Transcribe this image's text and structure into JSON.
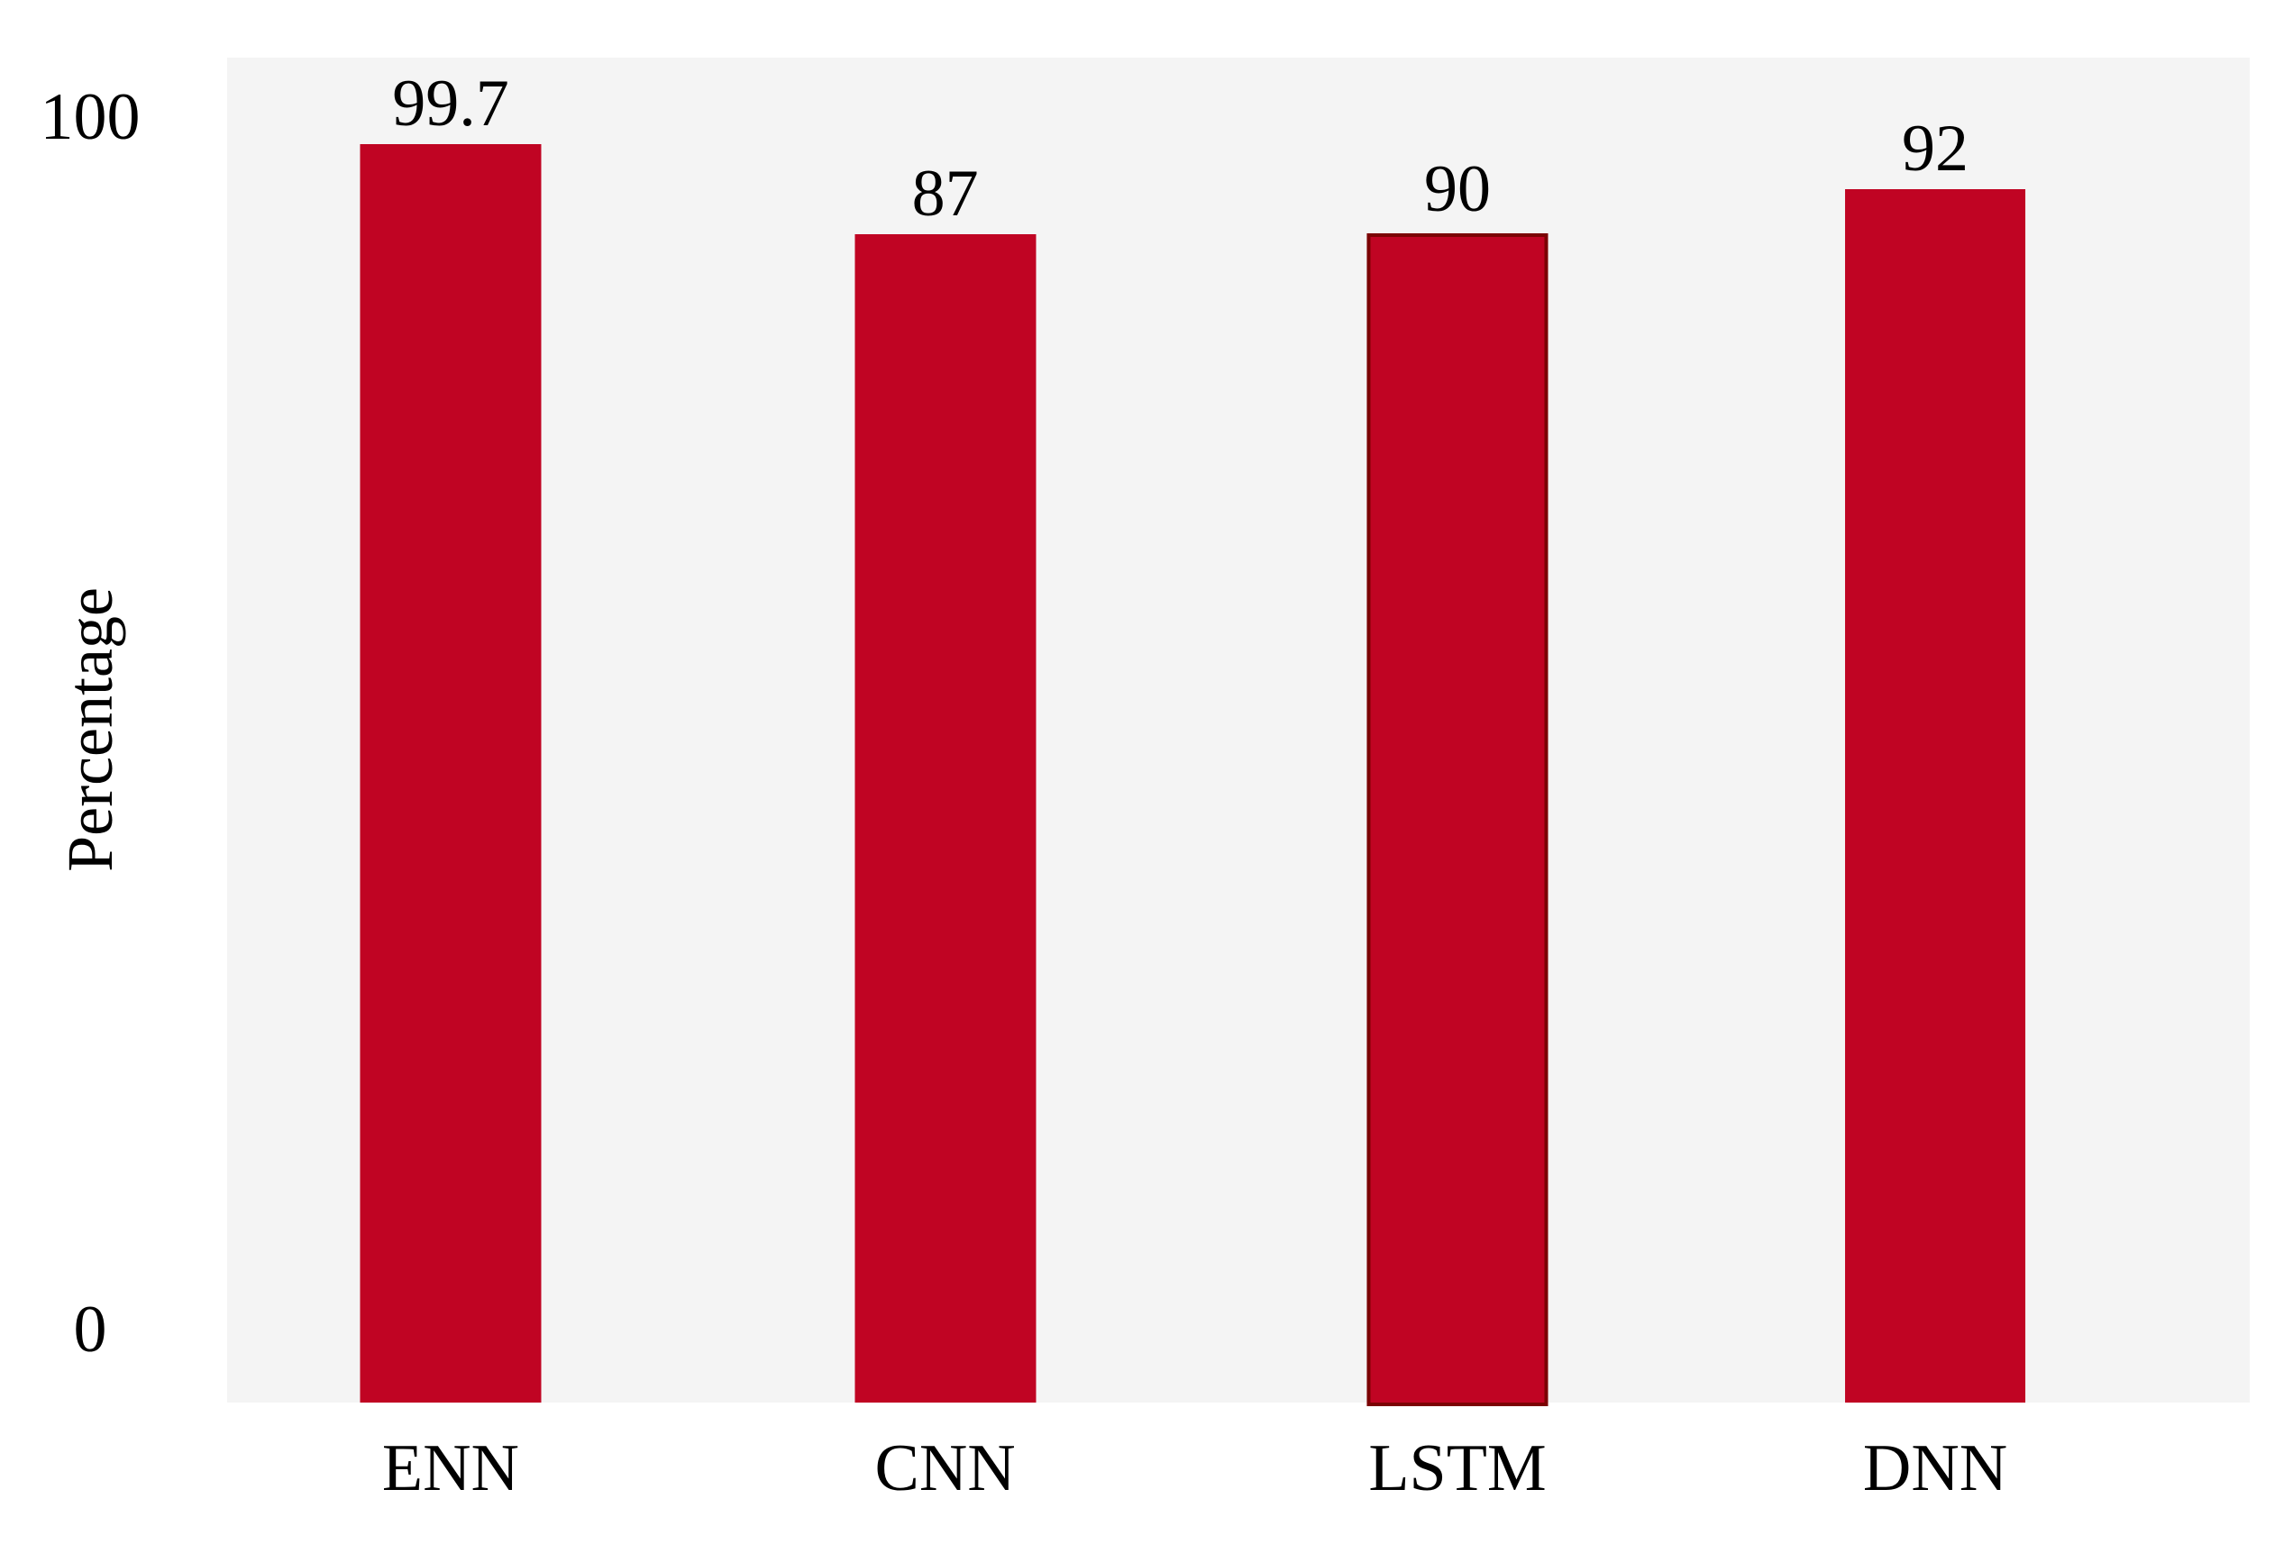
{
  "figure": {
    "background": "#FFFFFF"
  },
  "chart_data": {
    "type": "bar",
    "title": "",
    "xlabel": "",
    "ylabel": "Percentage",
    "ylim": [
      0,
      100
    ],
    "ytick_labels": [
      "100",
      "0"
    ],
    "categories": [
      "ENN",
      "CNN",
      "LSTM",
      "DNN"
    ],
    "values": [
      99.7,
      87,
      90,
      92
    ],
    "value_labels": [
      "99.7",
      "87",
      "90",
      "92"
    ],
    "grid": false,
    "legend": false,
    "bar_color": "#C00423",
    "highlight_bar": "LSTM",
    "highlight_border_color": "#7B0304",
    "plot_background": "#F4F4F4",
    "layout": {
      "yticks": [
        {
          "label": "100",
          "offset_pct": 4.4
        },
        {
          "label": "0",
          "offset_pct": 94.6
        }
      ],
      "bars": [
        {
          "category": "ENN",
          "value": 99.7,
          "value_label": "99.7",
          "center_pct": 11.05,
          "width_pct": 8.96,
          "height_pct": 93.6,
          "outlined": false
        },
        {
          "category": "CNN",
          "value": 87,
          "value_label": "87",
          "center_pct": 35.5,
          "width_pct": 8.96,
          "height_pct": 86.9,
          "outlined": false
        },
        {
          "category": "LSTM",
          "value": 90,
          "value_label": "90",
          "center_pct": 60.83,
          "width_pct": 8.96,
          "height_pct": 87.2,
          "outlined": true
        },
        {
          "category": "DNN",
          "value": 92,
          "value_label": "92",
          "center_pct": 84.45,
          "width_pct": 8.91,
          "height_pct": 90.2,
          "outlined": false
        }
      ]
    }
  }
}
